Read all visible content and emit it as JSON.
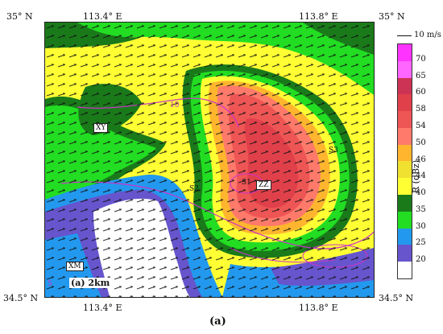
{
  "top_labels": {
    "left_corner": "35° N",
    "right_corner": "35° N",
    "lon_left": "113.4° E",
    "lon_right": "113.8° E"
  },
  "bottom_labels": {
    "left_corner": "34.5° N",
    "right_corner": "34.5° N",
    "lon_left": "113.4° E",
    "lon_right": "113.8° E"
  },
  "scale": {
    "arrow_label": "10 m/s"
  },
  "colorbar": {
    "unit": "R (dBz)",
    "ticks": [
      "70",
      "65",
      "60",
      "58",
      "54",
      "50",
      "46",
      "44",
      "40",
      "35",
      "30",
      "25",
      "20"
    ],
    "colors": [
      "#ff33ff",
      "#ff66ff",
      "#cc3355",
      "#e0404a",
      "#ee5555",
      "#ff7a6a",
      "#ffb62e",
      "#f0e030",
      "#ffff33",
      "#1a7a1a",
      "#22dd22",
      "#2299ee",
      "#6655cc",
      "#ffffff"
    ]
  },
  "stations": {
    "xy": "XY",
    "zz": "ZZ",
    "xm": "XM",
    "s1": "S1",
    "s2": "S2",
    "s3": "S3"
  },
  "contour_labels": {
    "c1": "10",
    "c2": "5"
  },
  "panel": {
    "label": "(a) 2km",
    "caption": "(a)"
  }
}
